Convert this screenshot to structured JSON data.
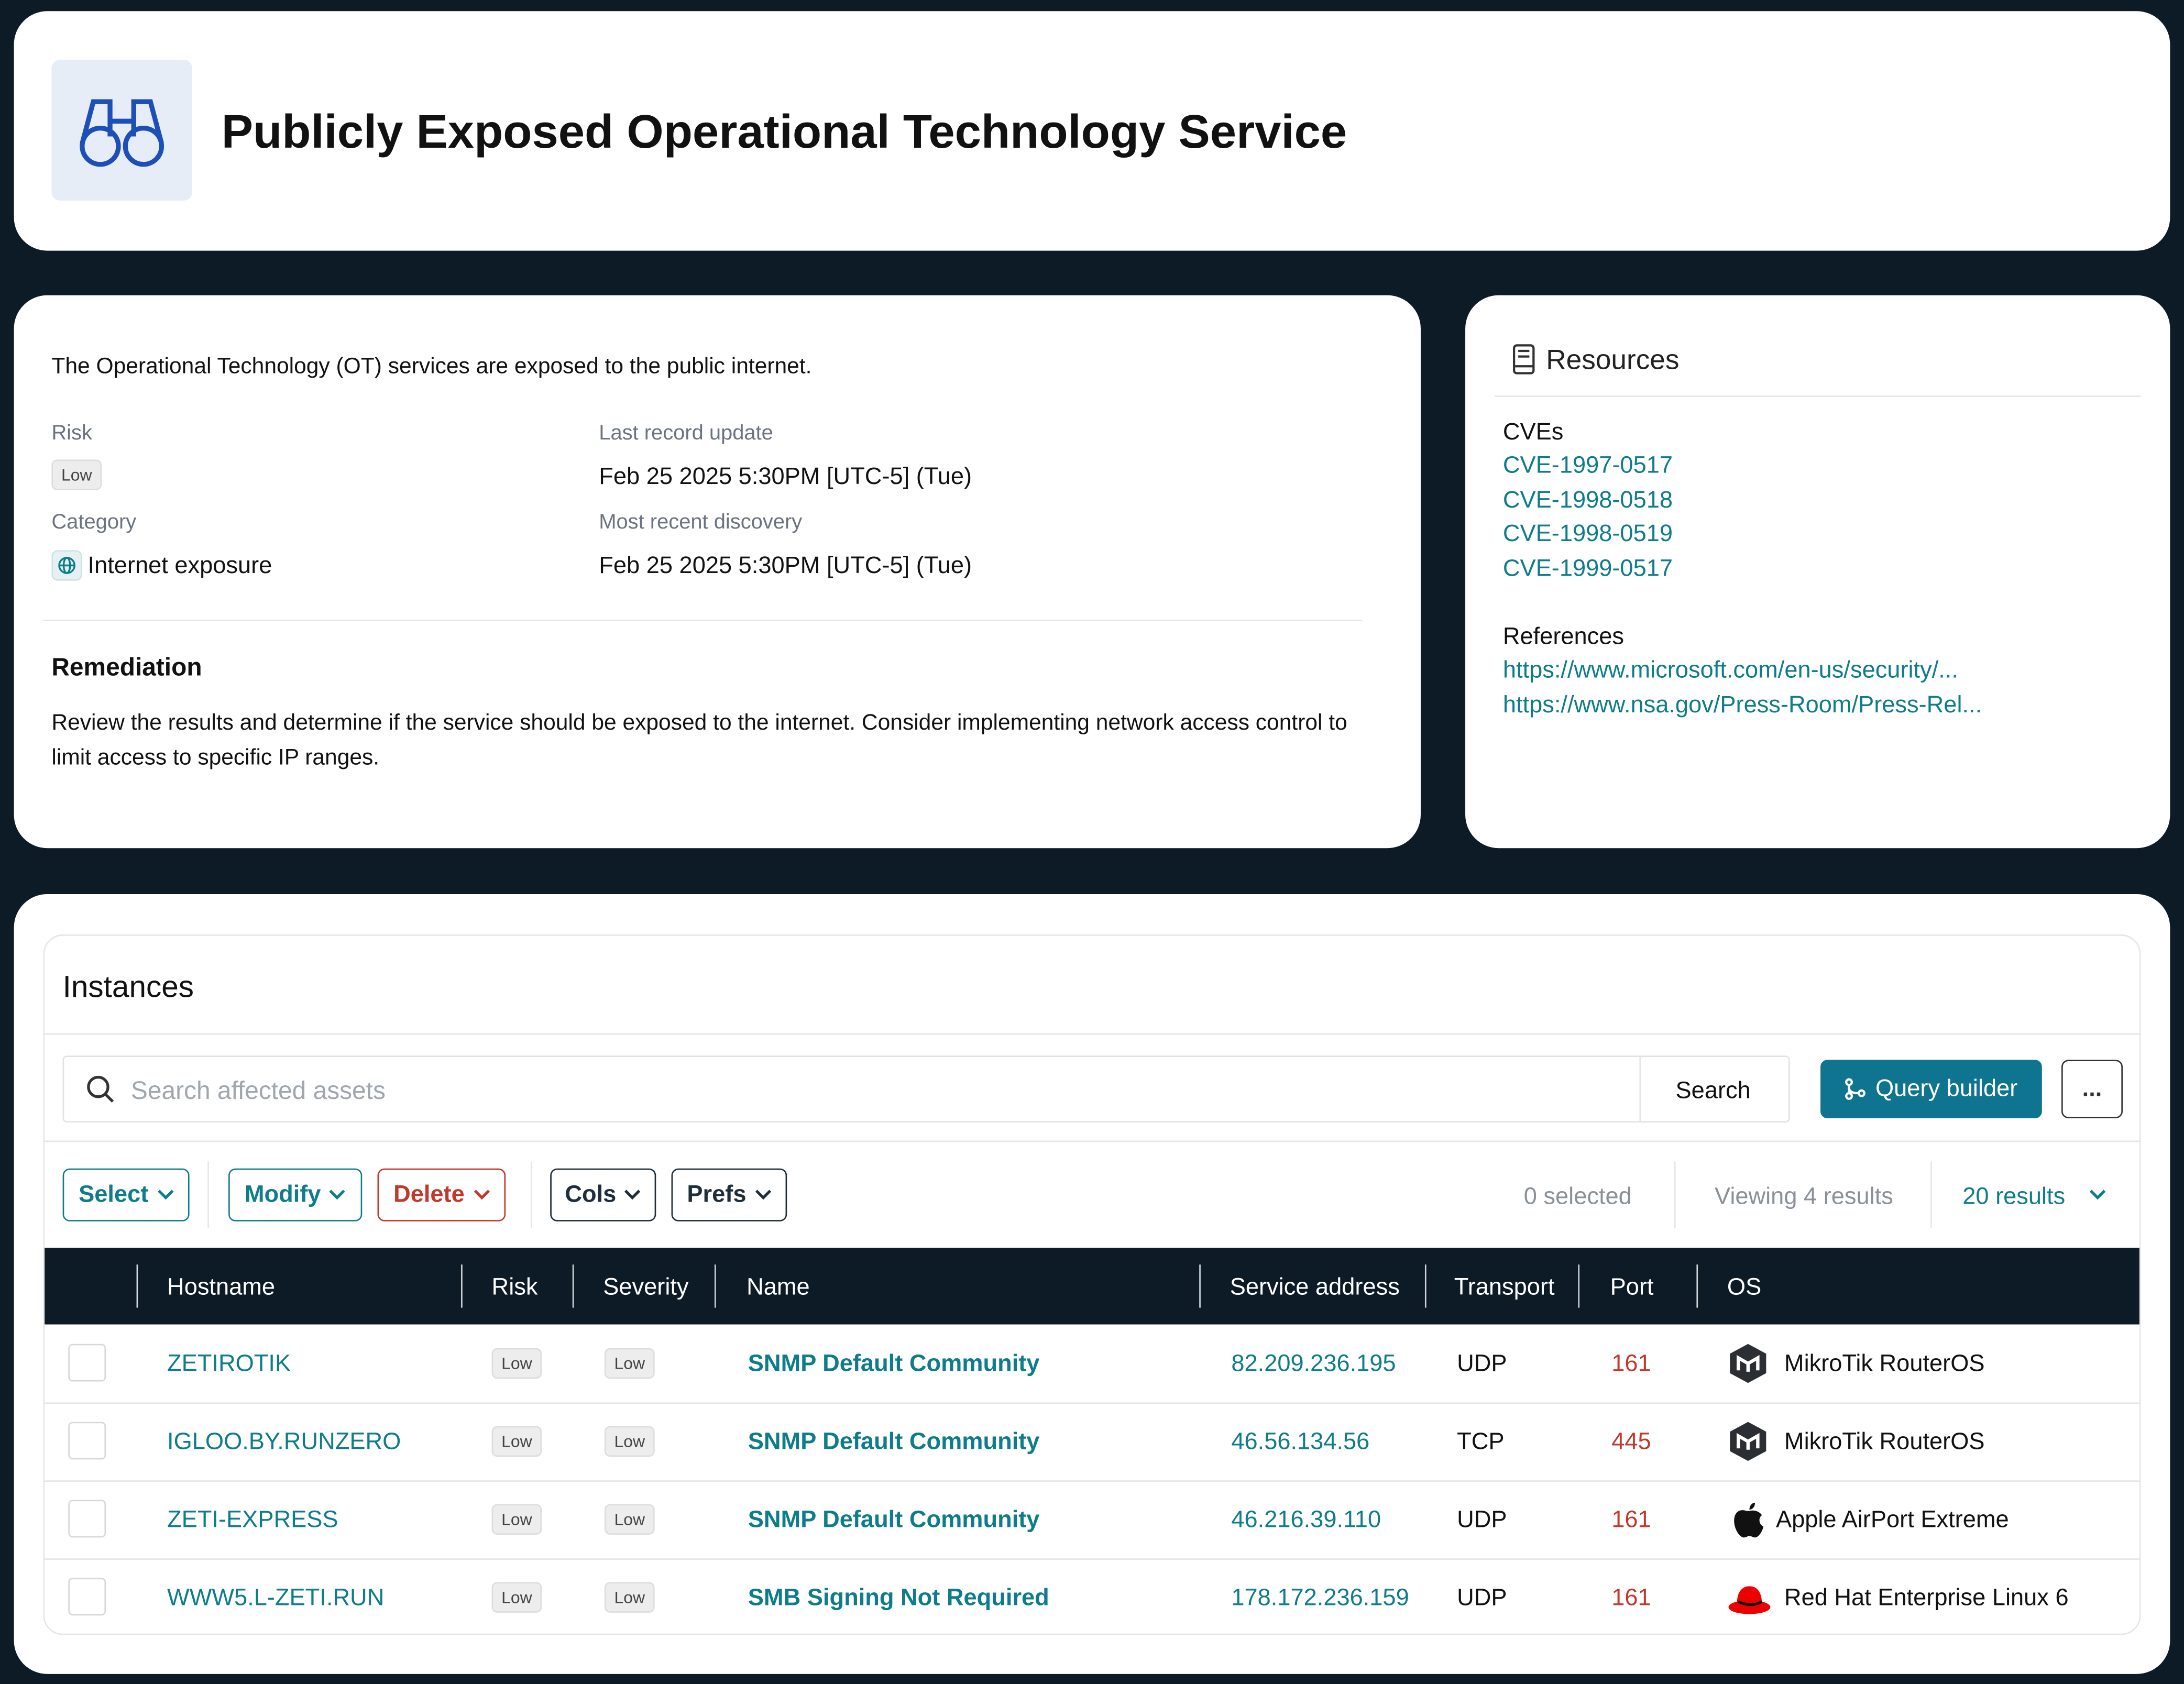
{
  "header": {
    "title": "Publicly Exposed Operational Technology Service"
  },
  "summary": {
    "description": "The Operational Technology (OT) services are exposed to the public internet.",
    "fields": [
      {
        "label": "Risk",
        "value": "Low"
      },
      {
        "label": "Last record update",
        "value": "Feb 25 2025 5:30PM [UTC-5] (Tue)"
      },
      {
        "label": "Category",
        "value": "Internet exposure"
      },
      {
        "label": "Most recent discovery",
        "value": "Feb 25 2025 5:30PM [UTC-5] (Tue)"
      }
    ],
    "remediation": {
      "title": "Remediation",
      "text": "Review the results and determine if the service should be exposed to the internet. Consider implementing network access control to limit access to specific IP ranges."
    }
  },
  "resources": {
    "title": "Resources",
    "cves_title": "CVEs",
    "cves": [
      "CVE-1997-0517",
      "CVE-1998-0518",
      "CVE-1998-0519",
      "CVE-1999-0517"
    ],
    "references_title": "References",
    "references": [
      "https://www.microsoft.com/en-us/security/...",
      "https://www.nsa.gov/Press-Room/Press-Rel..."
    ]
  },
  "instances": {
    "title": "Instances",
    "search_placeholder": "Search affected assets",
    "search_button": "Search",
    "query_builder": "Query builder",
    "more": "...",
    "toolbar": [
      "Select",
      "Modify",
      "Delete",
      "Cols",
      "Prefs"
    ],
    "selected": "0 selected",
    "viewing": "Viewing 4 results",
    "page_size": "20 results",
    "columns": [
      "Hostname",
      "Risk",
      "Severity",
      "Name",
      "Service address",
      "Transport",
      "Port",
      "OS"
    ],
    "rows": [
      [
        "ZETIROTIK",
        "Low",
        "Low",
        "SNMP Default Community",
        "82.209.236.195",
        "UDP",
        161,
        "MikroTik RouterOS"
      ],
      [
        "IGLOO.BY.RUNZERO",
        "Low",
        "Low",
        "SNMP Default Community",
        "46.56.134.56",
        "TCP",
        445,
        "MikroTik RouterOS"
      ],
      [
        "ZETI-EXPRESS",
        "Low",
        "Low",
        "SNMP Default Community",
        "46.216.39.110",
        "UDP",
        161,
        "Apple AirPort Extreme"
      ],
      [
        "WWW5.L-ZETI.RUN",
        "Low",
        "Low",
        "SMB Signing Not Required",
        "178.172.236.159",
        "UDP",
        161,
        "Red Hat Enterprise Linux 6"
      ]
    ]
  }
}
